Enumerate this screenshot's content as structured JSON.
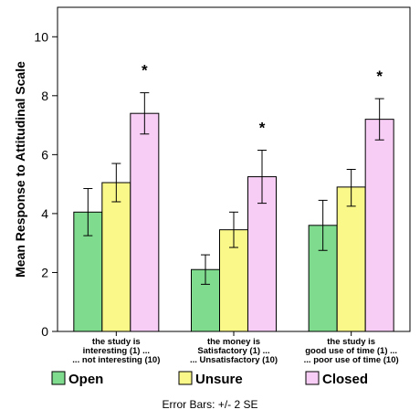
{
  "chart_data": {
    "type": "bar",
    "ylabel": "Mean Response to Attitudinal Scale",
    "xlabel": "",
    "ylim": [
      0,
      11
    ],
    "yticks": [
      0,
      2,
      4,
      6,
      8,
      10
    ],
    "grid": false,
    "legend_position": "bottom",
    "categories": [
      [
        "the study is",
        "interesting (1) ...",
        "... not interesting (10)"
      ],
      [
        "the money is",
        "Satisfactory (1) ...",
        "... Unsatisfactory (10)"
      ],
      [
        "the study is",
        "good use of time (1) ...",
        "... poor use of time (10)"
      ]
    ],
    "series": [
      {
        "name": "Open",
        "color": "#7fdc8f",
        "values": [
          4.05,
          2.1,
          3.6
        ],
        "err_low": [
          3.25,
          1.6,
          2.75
        ],
        "err_high": [
          4.85,
          2.6,
          4.45
        ]
      },
      {
        "name": "Unsure",
        "color": "#fbf88a",
        "values": [
          5.05,
          3.45,
          4.9
        ],
        "err_low": [
          4.4,
          2.85,
          4.25
        ],
        "err_high": [
          5.7,
          4.05,
          5.5
        ]
      },
      {
        "name": "Closed",
        "color": "#f8cdf5",
        "values": [
          7.4,
          5.25,
          7.2
        ],
        "err_low": [
          6.7,
          4.35,
          6.5
        ],
        "err_high": [
          8.1,
          6.15,
          7.9
        ]
      }
    ],
    "significance_marks": [
      "*",
      "*",
      "*"
    ],
    "footnote": "Error Bars: +/- 2 SE"
  }
}
